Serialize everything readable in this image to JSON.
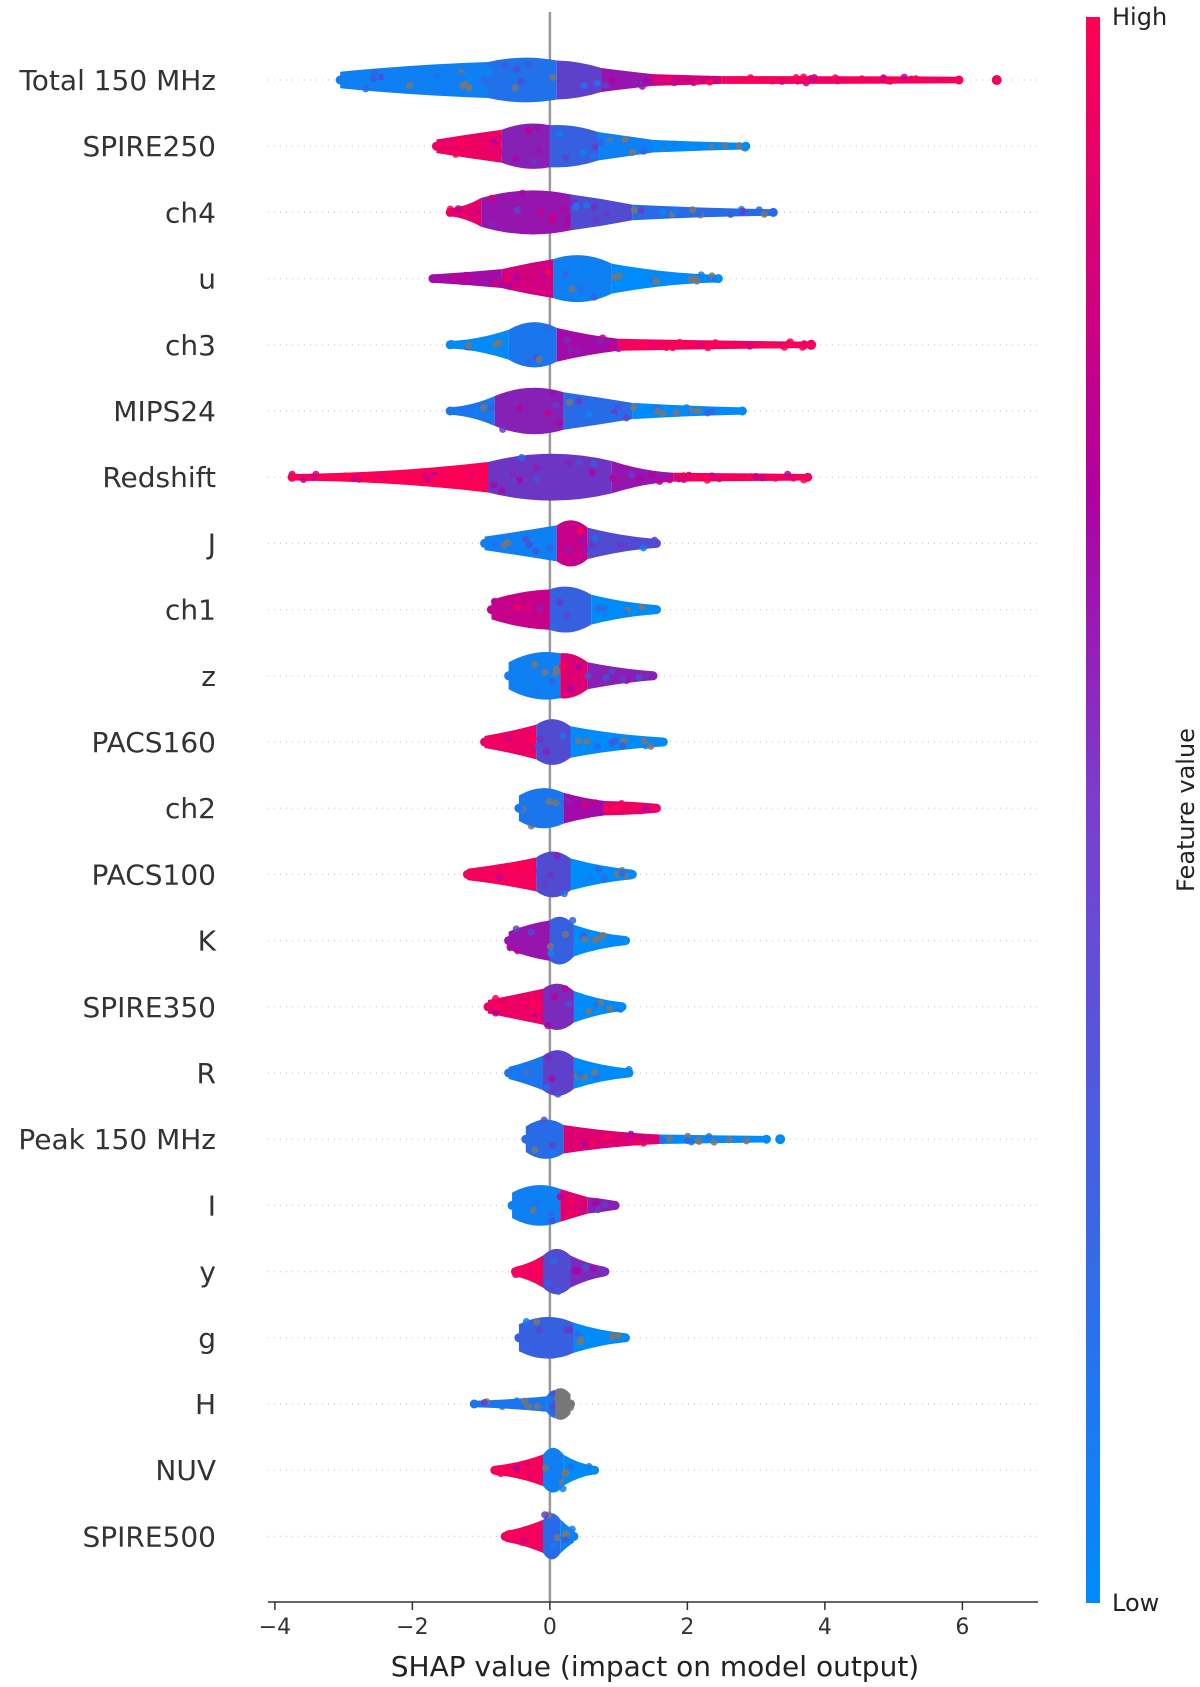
{
  "chart_data": {
    "type": "scatter",
    "subtype": "shap-beeswarm",
    "xlabel": "SHAP value (impact on model output)",
    "xlim": [
      -4.1,
      7.1
    ],
    "xticks": [
      -4,
      -2,
      0,
      2,
      4,
      6
    ],
    "xtick_labels": [
      "−4",
      "−2",
      "0",
      "2",
      "4",
      "6"
    ],
    "colorbar": {
      "title": "Feature value",
      "high_label": "High",
      "low_label": "Low",
      "low_color": "#008bfb",
      "high_color": "#ff0052",
      "mid_color": "#b000a0"
    },
    "zero_line_color": "#999999",
    "features": [
      {
        "name": "Total 150 MHz",
        "min": -3.05,
        "max": 5.95,
        "outliers": [
          6.5
        ],
        "segments": [
          {
            "from": -3.05,
            "to": -0.9,
            "w": 0.45,
            "c": 0.05
          },
          {
            "from": -0.9,
            "to": 0.1,
            "w": 0.75,
            "c": 0.12
          },
          {
            "from": 0.1,
            "to": 0.75,
            "w": 0.55,
            "c": 0.35
          },
          {
            "from": 0.75,
            "to": 1.5,
            "w": 0.25,
            "c": 0.55
          },
          {
            "from": 1.5,
            "to": 2.5,
            "w": 0.14,
            "c": 0.8
          },
          {
            "from": 2.5,
            "to": 5.95,
            "w": 0.08,
            "c": 0.95
          }
        ]
      },
      {
        "name": "SPIRE250",
        "min": -1.65,
        "max": 2.85,
        "outliers": [],
        "segments": [
          {
            "from": -1.65,
            "to": -0.7,
            "w": 0.35,
            "c": 0.92
          },
          {
            "from": -0.7,
            "to": 0.0,
            "w": 0.75,
            "c": 0.5
          },
          {
            "from": 0.0,
            "to": 0.7,
            "w": 0.65,
            "c": 0.2
          },
          {
            "from": 0.7,
            "to": 1.5,
            "w": 0.3,
            "c": 0.05
          },
          {
            "from": 1.5,
            "to": 2.85,
            "w": 0.12,
            "c": 0.0
          }
        ]
      },
      {
        "name": "ch4",
        "min": -1.45,
        "max": 3.25,
        "outliers": [],
        "segments": [
          {
            "from": -1.45,
            "to": -1.0,
            "w": 0.16,
            "c": 0.9
          },
          {
            "from": -1.0,
            "to": 0.3,
            "w": 0.8,
            "c": 0.55
          },
          {
            "from": 0.3,
            "to": 1.2,
            "w": 0.4,
            "c": 0.3
          },
          {
            "from": 1.2,
            "to": 3.25,
            "w": 0.12,
            "c": 0.15
          }
        ]
      },
      {
        "name": "u",
        "min": -1.7,
        "max": 2.45,
        "outliers": [],
        "segments": [
          {
            "from": -1.7,
            "to": -0.7,
            "w": 0.18,
            "c": 0.6
          },
          {
            "from": -0.7,
            "to": 0.05,
            "w": 0.45,
            "c": 0.8
          },
          {
            "from": 0.05,
            "to": 0.9,
            "w": 0.85,
            "c": 0.05
          },
          {
            "from": 0.9,
            "to": 2.45,
            "w": 0.15,
            "c": 0.0
          }
        ]
      },
      {
        "name": "ch3",
        "min": -1.45,
        "max": 3.7,
        "outliers": [
          3.8
        ],
        "segments": [
          {
            "from": -1.45,
            "to": -0.6,
            "w": 0.15,
            "c": 0.0
          },
          {
            "from": -0.6,
            "to": 0.1,
            "w": 0.85,
            "c": 0.1
          },
          {
            "from": 0.1,
            "to": 1.0,
            "w": 0.28,
            "c": 0.6
          },
          {
            "from": 1.0,
            "to": 3.7,
            "w": 0.12,
            "c": 0.95
          }
        ]
      },
      {
        "name": "MIPS24",
        "min": -1.45,
        "max": 2.8,
        "outliers": [],
        "segments": [
          {
            "from": -1.45,
            "to": -0.8,
            "w": 0.15,
            "c": 0.1
          },
          {
            "from": -0.8,
            "to": 0.2,
            "w": 0.85,
            "c": 0.5
          },
          {
            "from": 0.2,
            "to": 1.2,
            "w": 0.4,
            "c": 0.15
          },
          {
            "from": 1.2,
            "to": 2.8,
            "w": 0.14,
            "c": 0.0
          }
        ]
      },
      {
        "name": "Redshift",
        "min": -3.75,
        "max": 3.75,
        "outliers": [],
        "segments": [
          {
            "from": -3.75,
            "to": -0.9,
            "w": 0.1,
            "c": 0.98
          },
          {
            "from": -0.9,
            "to": 0.9,
            "w": 0.9,
            "c": 0.4
          },
          {
            "from": 0.9,
            "to": 1.8,
            "w": 0.18,
            "c": 0.55
          },
          {
            "from": 1.8,
            "to": 3.75,
            "w": 0.1,
            "c": 0.95
          }
        ]
      },
      {
        "name": "J",
        "min": -0.95,
        "max": 1.55,
        "outliers": [],
        "segments": [
          {
            "from": -0.95,
            "to": 0.1,
            "w": 0.35,
            "c": 0.05
          },
          {
            "from": 0.1,
            "to": 0.55,
            "w": 0.85,
            "c": 0.75
          },
          {
            "from": 0.55,
            "to": 1.55,
            "w": 0.2,
            "c": 0.3
          }
        ]
      },
      {
        "name": "ch1",
        "min": -0.85,
        "max": 1.55,
        "outliers": [],
        "segments": [
          {
            "from": -0.85,
            "to": 0.0,
            "w": 0.55,
            "c": 0.75
          },
          {
            "from": 0.0,
            "to": 0.6,
            "w": 0.8,
            "c": 0.2
          },
          {
            "from": 0.6,
            "to": 1.55,
            "w": 0.2,
            "c": 0.0
          }
        ]
      },
      {
        "name": "z",
        "min": -0.6,
        "max": 1.5,
        "outliers": [],
        "segments": [
          {
            "from": -0.6,
            "to": 0.15,
            "w": 0.8,
            "c": 0.05
          },
          {
            "from": 0.15,
            "to": 0.55,
            "w": 0.7,
            "c": 0.85
          },
          {
            "from": 0.55,
            "to": 1.5,
            "w": 0.2,
            "c": 0.5
          }
        ]
      },
      {
        "name": "PACS160",
        "min": -0.95,
        "max": 1.65,
        "outliers": [],
        "segments": [
          {
            "from": -0.95,
            "to": -0.2,
            "w": 0.3,
            "c": 0.92
          },
          {
            "from": -0.2,
            "to": 0.3,
            "w": 0.85,
            "c": 0.3
          },
          {
            "from": 0.3,
            "to": 1.65,
            "w": 0.2,
            "c": 0.0
          }
        ]
      },
      {
        "name": "ch2",
        "min": -0.45,
        "max": 1.55,
        "outliers": [],
        "segments": [
          {
            "from": -0.45,
            "to": 0.2,
            "w": 0.75,
            "c": 0.1
          },
          {
            "from": 0.2,
            "to": 0.8,
            "w": 0.28,
            "c": 0.6
          },
          {
            "from": 0.8,
            "to": 1.55,
            "w": 0.2,
            "c": 0.92
          }
        ]
      },
      {
        "name": "PACS100",
        "min": -1.2,
        "max": 1.2,
        "outliers": [],
        "segments": [
          {
            "from": -1.2,
            "to": -0.2,
            "w": 0.28,
            "c": 0.95
          },
          {
            "from": -0.2,
            "to": 0.3,
            "w": 0.85,
            "c": 0.3
          },
          {
            "from": 0.3,
            "to": 1.2,
            "w": 0.22,
            "c": 0.0
          }
        ]
      },
      {
        "name": "K",
        "min": -0.6,
        "max": 1.1,
        "outliers": [],
        "segments": [
          {
            "from": -0.6,
            "to": 0.0,
            "w": 0.5,
            "c": 0.55
          },
          {
            "from": 0.0,
            "to": 0.35,
            "w": 0.85,
            "c": 0.2
          },
          {
            "from": 0.35,
            "to": 1.1,
            "w": 0.2,
            "c": 0.0
          }
        ]
      },
      {
        "name": "SPIRE350",
        "min": -0.9,
        "max": 1.05,
        "outliers": [],
        "segments": [
          {
            "from": -0.9,
            "to": -0.1,
            "w": 0.35,
            "c": 0.92
          },
          {
            "from": -0.1,
            "to": 0.35,
            "w": 0.85,
            "c": 0.45
          },
          {
            "from": 0.35,
            "to": 1.05,
            "w": 0.2,
            "c": 0.0
          }
        ]
      },
      {
        "name": "R",
        "min": -0.6,
        "max": 1.15,
        "outliers": [],
        "segments": [
          {
            "from": -0.6,
            "to": -0.1,
            "w": 0.3,
            "c": 0.1
          },
          {
            "from": -0.1,
            "to": 0.35,
            "w": 0.85,
            "c": 0.35
          },
          {
            "from": 0.35,
            "to": 1.15,
            "w": 0.2,
            "c": 0.0
          }
        ]
      },
      {
        "name": "Peak 150 MHz",
        "min": -0.35,
        "max": 3.15,
        "outliers": [
          3.35
        ],
        "segments": [
          {
            "from": -0.35,
            "to": 0.2,
            "w": 0.75,
            "c": 0.15
          },
          {
            "from": 0.2,
            "to": 1.6,
            "w": 0.2,
            "c": 0.85
          },
          {
            "from": 1.6,
            "to": 3.15,
            "w": 0.1,
            "c": 0.0
          }
        ]
      },
      {
        "name": "I",
        "min": -0.55,
        "max": 0.95,
        "outliers": [],
        "segments": [
          {
            "from": -0.55,
            "to": 0.15,
            "w": 0.75,
            "c": 0.05
          },
          {
            "from": 0.15,
            "to": 0.55,
            "w": 0.35,
            "c": 0.85
          },
          {
            "from": 0.55,
            "to": 0.95,
            "w": 0.2,
            "c": 0.5
          }
        ]
      },
      {
        "name": "y",
        "min": -0.5,
        "max": 0.8,
        "outliers": [],
        "segments": [
          {
            "from": -0.5,
            "to": -0.1,
            "w": 0.22,
            "c": 0.95
          },
          {
            "from": -0.1,
            "to": 0.3,
            "w": 0.85,
            "c": 0.3
          },
          {
            "from": 0.3,
            "to": 0.8,
            "w": 0.22,
            "c": 0.45
          }
        ]
      },
      {
        "name": "g",
        "min": -0.45,
        "max": 1.1,
        "outliers": [],
        "segments": [
          {
            "from": -0.45,
            "to": 0.35,
            "w": 0.8,
            "c": 0.2
          },
          {
            "from": 0.35,
            "to": 1.1,
            "w": 0.2,
            "c": 0.0
          }
        ]
      },
      {
        "name": "H",
        "min": -1.1,
        "max": 0.3,
        "outliers": [],
        "segments": [
          {
            "from": -1.1,
            "to": -0.05,
            "w": 0.12,
            "c": 0.1
          },
          {
            "from": -0.05,
            "to": 0.08,
            "w": 0.4,
            "c": 0.1
          },
          {
            "from": 0.08,
            "to": 0.3,
            "w": 0.55,
            "c": -1
          }
        ]
      },
      {
        "name": "NUV",
        "min": -0.8,
        "max": 0.65,
        "outliers": [],
        "segments": [
          {
            "from": -0.8,
            "to": -0.1,
            "w": 0.2,
            "c": 0.97
          },
          {
            "from": -0.1,
            "to": 0.2,
            "w": 0.85,
            "c": 0.05
          },
          {
            "from": 0.2,
            "to": 0.65,
            "w": 0.18,
            "c": 0.0
          }
        ]
      },
      {
        "name": "SPIRE500",
        "min": -0.65,
        "max": 0.35,
        "outliers": [],
        "segments": [
          {
            "from": -0.65,
            "to": -0.1,
            "w": 0.25,
            "c": 0.95
          },
          {
            "from": -0.1,
            "to": 0.15,
            "w": 0.85,
            "c": 0.15
          },
          {
            "from": 0.15,
            "to": 0.35,
            "w": 0.3,
            "c": 0.05
          }
        ]
      }
    ]
  }
}
